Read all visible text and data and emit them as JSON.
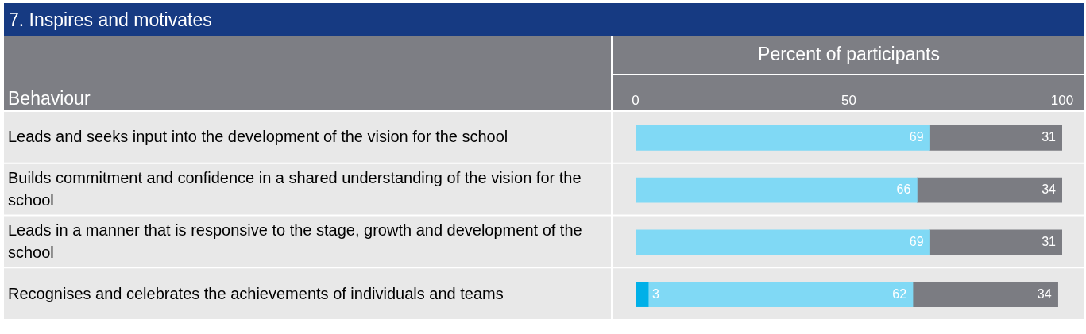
{
  "chart_data": {
    "type": "bar",
    "orientation": "horizontal",
    "stacked": true,
    "title": "7. Inspires and motivates",
    "xlabel": "Percent of participants",
    "ylabel": "Behaviour",
    "categories": [
      "Leads and seeks input into the development of the vision for the school",
      "Builds commitment and confidence in a shared understanding of the vision for the school",
      "Leads in a manner that is responsive to the stage, growth and development of the school",
      "Recognises and celebrates the achievements of individuals and teams"
    ],
    "series": [
      {
        "color": "#00b0e8",
        "values": [
          null,
          null,
          null,
          3
        ]
      },
      {
        "color": "#80d9f5",
        "values": [
          69,
          66,
          69,
          62
        ]
      },
      {
        "color": "#7b7c82",
        "values": [
          31,
          34,
          31,
          34
        ]
      }
    ],
    "xlim": [
      0,
      100
    ],
    "xticks": [
      0,
      50,
      100
    ],
    "data_labels": true,
    "grid": false,
    "legend": false
  }
}
